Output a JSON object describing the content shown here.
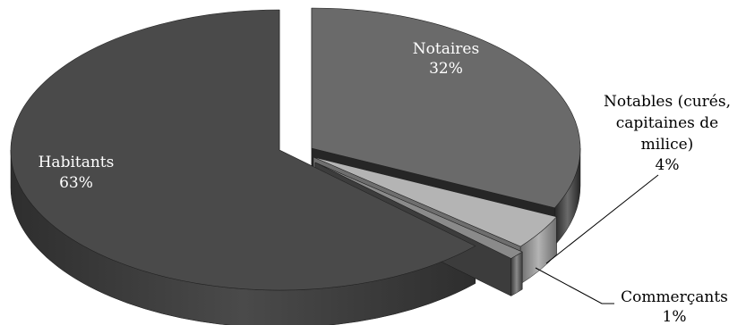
{
  "chart_data": {
    "type": "pie",
    "style": "3d-exploded",
    "legend": "none",
    "slices": [
      {
        "name": "Notaires",
        "value": 32,
        "label": "32%",
        "color": "#6a6a6a",
        "side_color": "#262626"
      },
      {
        "name": "Notables (curés, capitaines de milice)",
        "name_lines": [
          "Notables (curés,",
          "capitaines de",
          "milice)"
        ],
        "value": 4,
        "label": "4%",
        "color": "#b4b4b4",
        "side_color": "#6e6e6e"
      },
      {
        "name": "Commerçants",
        "value": 1,
        "label": "1%",
        "color": "#8a8a8a",
        "side_color": "#3c3c3c"
      },
      {
        "name": "Habitants",
        "value": 63,
        "label": "63%",
        "color": "#4a4a4a",
        "side_color": "#2e2e2e"
      }
    ]
  }
}
